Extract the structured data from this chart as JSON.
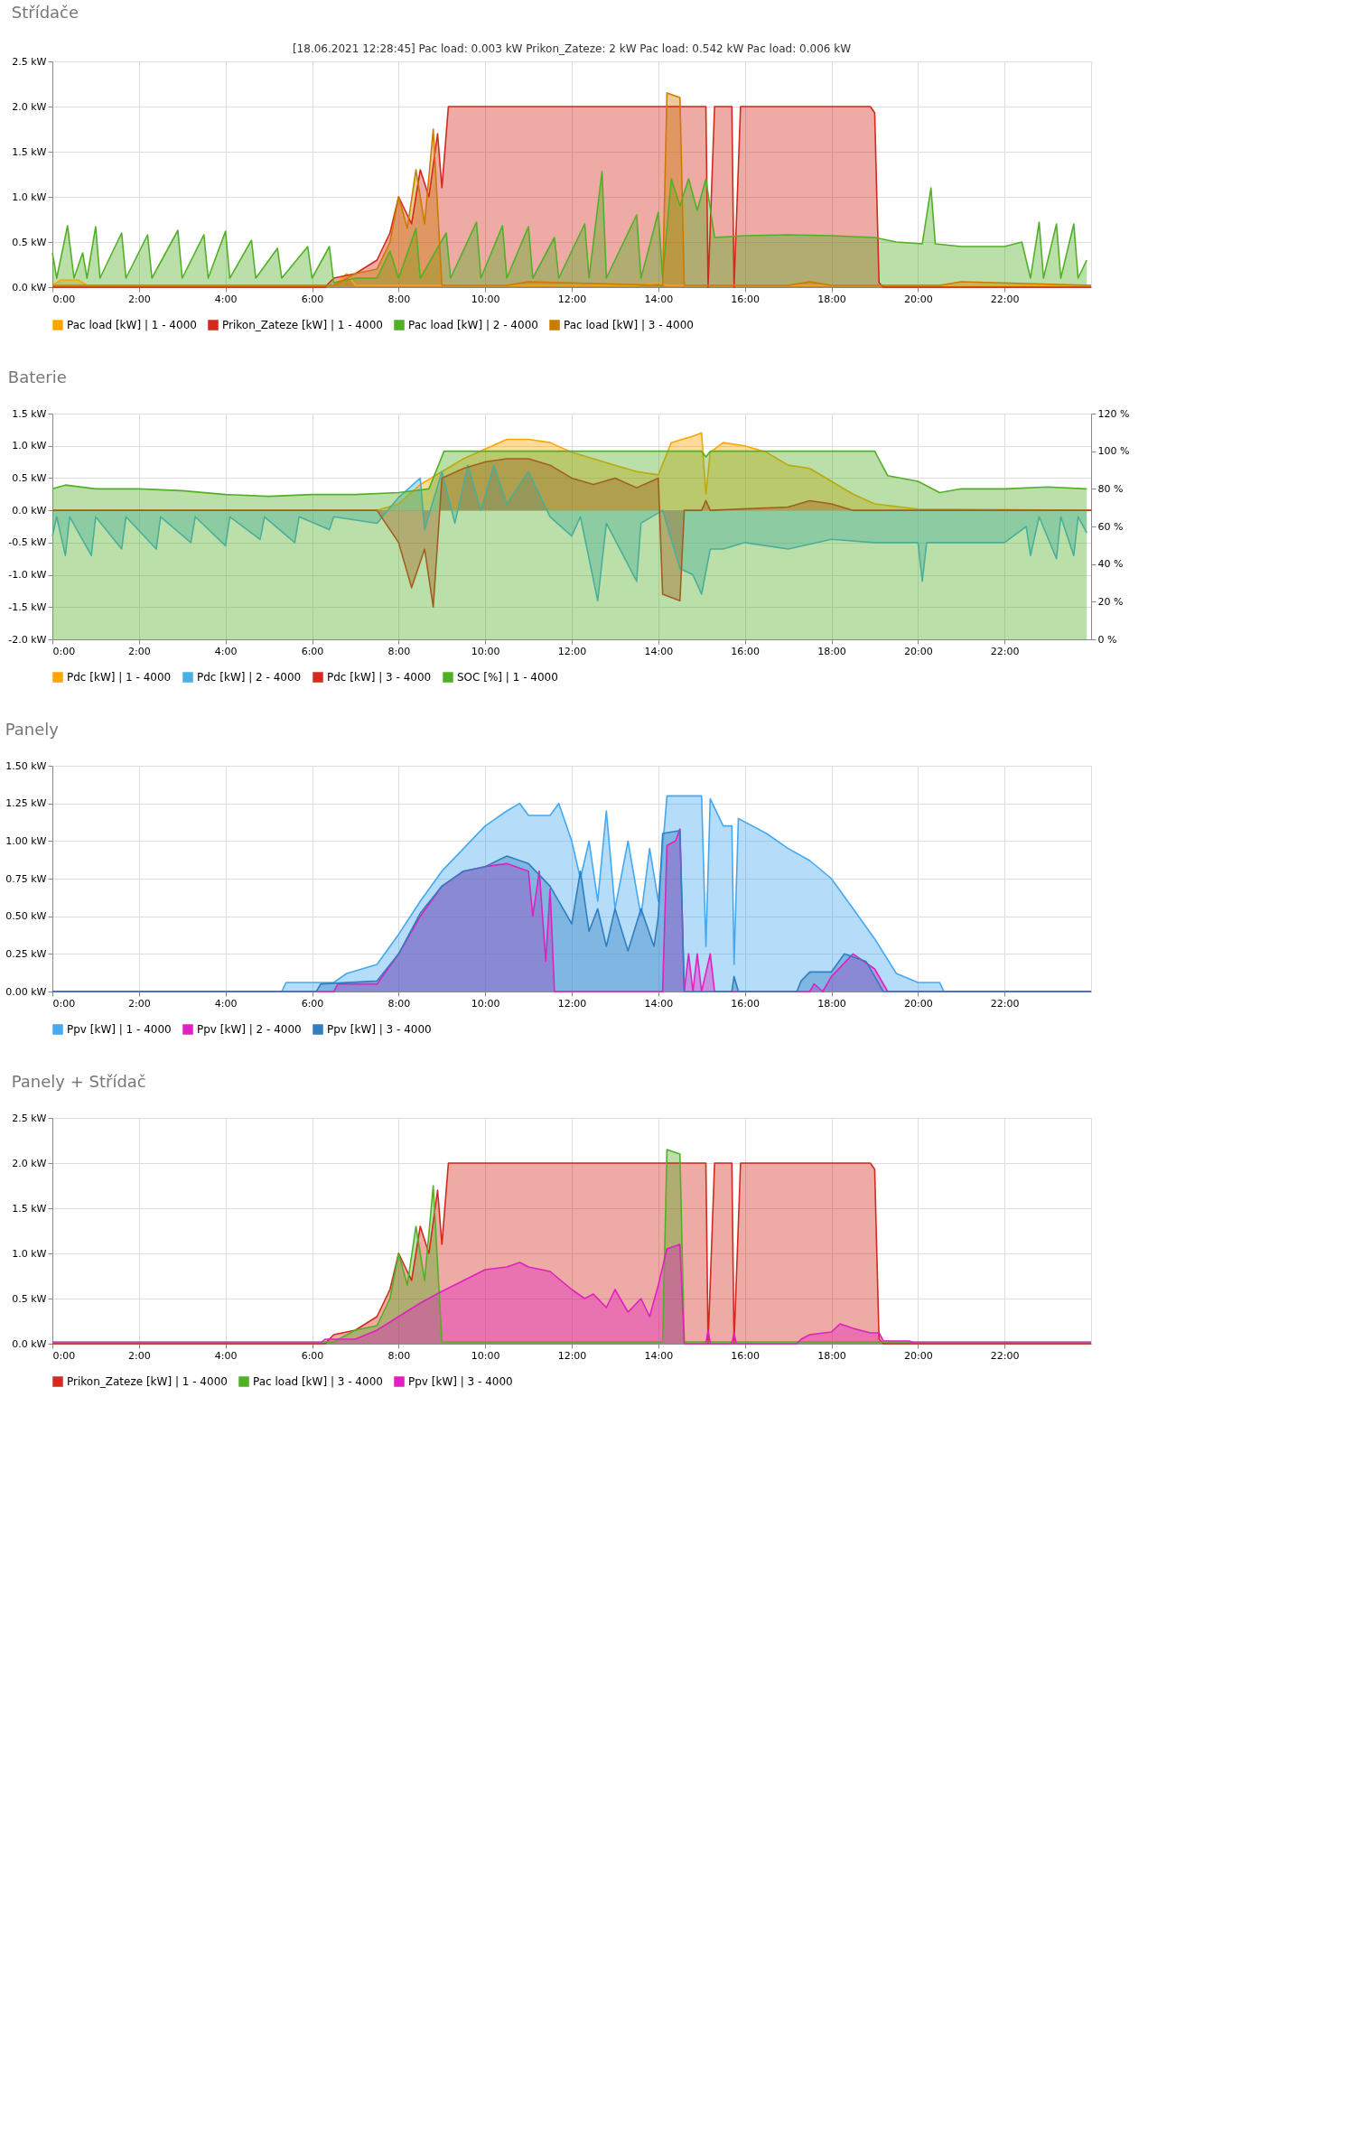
{
  "chart_data": [
    {
      "type": "area",
      "title": "Střídače",
      "annotations": [
        "[18.06.2021 12:28:45]   Pac load: 0.003 kW   Prikon_Zateze: 2 kW   Pac load: 0.542 kW   Pac load: 0.006 kW"
      ],
      "grid": true,
      "legend": "bottom",
      "xlim": [
        0,
        24
      ],
      "xticks": [
        {
          "value": 0,
          "label": "0:00"
        },
        {
          "value": 2,
          "label": "2:00"
        },
        {
          "value": 4,
          "label": "4:00"
        },
        {
          "value": 6,
          "label": "6:00"
        },
        {
          "value": 8,
          "label": "8:00"
        },
        {
          "value": 10,
          "label": "10:00"
        },
        {
          "value": 12,
          "label": "12:00"
        },
        {
          "value": 14,
          "label": "14:00"
        },
        {
          "value": 16,
          "label": "16:00"
        },
        {
          "value": 18,
          "label": "18:00"
        },
        {
          "value": 20,
          "label": "20:00"
        },
        {
          "value": 22,
          "label": "22:00"
        }
      ],
      "ylim": [
        0,
        2.5
      ],
      "yticks": [
        {
          "value": 0,
          "label": "0.0 kW"
        },
        {
          "value": 0.5,
          "label": "0.5 kW"
        },
        {
          "value": 1,
          "label": "1.0 kW"
        },
        {
          "value": 1.5,
          "label": "1.5 kW"
        },
        {
          "value": 2,
          "label": "2.0 kW"
        },
        {
          "value": 2.5,
          "label": "2.5 kW"
        }
      ],
      "series": [
        {
          "name": "Pac load [kW] | 1 - 4000",
          "color": "#ffa500",
          "x": [
            0,
            0.2,
            0.6,
            0.8,
            6.5,
            6.8,
            7.0,
            13.5,
            14.0,
            14.2,
            24
          ],
          "values": [
            0.02,
            0.08,
            0.08,
            0.02,
            0.02,
            0.15,
            0.02,
            0.02,
            0.05,
            0.02,
            0.02
          ]
        },
        {
          "name": "Prikon_Zateze [kW] | 1 - 4000",
          "color": "#d42a1e",
          "x": [
            0,
            6.3,
            6.5,
            7.0,
            7.5,
            7.8,
            8.0,
            8.3,
            8.5,
            8.7,
            8.9,
            9.0,
            9.15,
            15.1,
            15.15,
            15.3,
            15.7,
            15.75,
            15.9,
            18.9,
            19.0,
            19.1,
            19.2,
            24
          ],
          "values": [
            0,
            0,
            0.1,
            0.15,
            0.3,
            0.6,
            1.0,
            0.7,
            1.3,
            1.0,
            1.7,
            1.1,
            2.0,
            2.0,
            0,
            2.0,
            2.0,
            0,
            2.0,
            2.0,
            1.93,
            0.05,
            0,
            0
          ]
        },
        {
          "name": "Pac load [kW] | 2 - 4000",
          "color": "#52b026",
          "x": [
            0,
            0.1,
            0.35,
            0.5,
            0.7,
            0.8,
            1.0,
            1.1,
            1.6,
            1.7,
            2.2,
            2.3,
            2.9,
            3.0,
            3.5,
            3.6,
            4.0,
            4.1,
            4.6,
            4.7,
            5.2,
            5.3,
            5.9,
            6.0,
            6.4,
            6.5,
            7.0,
            7.5,
            7.8,
            8.0,
            8.4,
            8.5,
            9.1,
            9.2,
            9.8,
            9.9,
            10.4,
            10.5,
            11.0,
            11.1,
            11.6,
            11.7,
            12.3,
            12.4,
            12.7,
            12.8,
            13.5,
            13.6,
            14.0,
            14.1,
            14.3,
            14.5,
            14.7,
            14.9,
            15.1,
            15.3,
            16.0,
            17.0,
            18.0,
            19.0,
            19.5,
            20.1,
            20.3,
            20.4,
            21.0,
            22.0,
            22.4,
            22.6,
            22.8,
            22.9,
            23.2,
            23.3,
            23.6,
            23.7,
            23.9
          ],
          "values": [
            0.38,
            0.1,
            0.68,
            0.1,
            0.38,
            0.1,
            0.67,
            0.1,
            0.6,
            0.1,
            0.58,
            0.1,
            0.63,
            0.1,
            0.58,
            0.1,
            0.62,
            0.1,
            0.52,
            0.1,
            0.43,
            0.1,
            0.45,
            0.1,
            0.45,
            0.05,
            0.1,
            0.1,
            0.4,
            0.1,
            0.65,
            0.1,
            0.6,
            0.1,
            0.72,
            0.1,
            0.68,
            0.1,
            0.67,
            0.1,
            0.55,
            0.1,
            0.7,
            0.1,
            1.28,
            0.1,
            0.8,
            0.1,
            0.83,
            0.1,
            1.2,
            0.9,
            1.2,
            0.85,
            1.2,
            0.55,
            0.57,
            0.58,
            0.57,
            0.55,
            0.5,
            0.48,
            1.1,
            0.48,
            0.45,
            0.45,
            0.5,
            0.1,
            0.72,
            0.1,
            0.7,
            0.1,
            0.7,
            0.1,
            0.3
          ]
        },
        {
          "name": "Pac load [kW] | 3 - 4000",
          "color": "#cc7a00",
          "x": [
            0,
            6.5,
            7.0,
            7.5,
            7.8,
            8.0,
            8.2,
            8.4,
            8.6,
            8.8,
            9.0,
            10.5,
            11.0,
            14.1,
            14.2,
            14.5,
            14.6,
            17.0,
            17.5,
            18.0,
            20.5,
            21.0,
            24
          ],
          "values": [
            0.02,
            0.02,
            0.15,
            0.2,
            0.5,
            1.0,
            0.65,
            1.3,
            0.7,
            1.75,
            0.02,
            0.02,
            0.06,
            0.02,
            2.15,
            2.1,
            0.02,
            0.02,
            0.06,
            0.02,
            0.02,
            0.06,
            0.02
          ]
        }
      ]
    },
    {
      "type": "area",
      "title": "Baterie",
      "grid": true,
      "legend": "bottom",
      "xlim": [
        0,
        24
      ],
      "xticks": [
        {
          "value": 0,
          "label": "0:00"
        },
        {
          "value": 2,
          "label": "2:00"
        },
        {
          "value": 4,
          "label": "4:00"
        },
        {
          "value": 6,
          "label": "6:00"
        },
        {
          "value": 8,
          "label": "8:00"
        },
        {
          "value": 10,
          "label": "10:00"
        },
        {
          "value": 12,
          "label": "12:00"
        },
        {
          "value": 14,
          "label": "14:00"
        },
        {
          "value": 16,
          "label": "16:00"
        },
        {
          "value": 18,
          "label": "18:00"
        },
        {
          "value": 20,
          "label": "20:00"
        },
        {
          "value": 22,
          "label": "22:00"
        }
      ],
      "ylim": [
        -2,
        1.5
      ],
      "yticks": [
        {
          "value": -2,
          "label": "-2.0 kW"
        },
        {
          "value": -1.5,
          "label": "-1.5 kW"
        },
        {
          "value": -1,
          "label": "-1.0 kW"
        },
        {
          "value": -0.5,
          "label": "-0.5 kW"
        },
        {
          "value": 0,
          "label": "0.0 kW"
        },
        {
          "value": 0.5,
          "label": "0.5 kW"
        },
        {
          "value": 1,
          "label": "1.0 kW"
        },
        {
          "value": 1.5,
          "label": "1.5 kW"
        }
      ],
      "y2lim": [
        0,
        120
      ],
      "y2ticks": [
        {
          "value": 0,
          "label": "0 %"
        },
        {
          "value": 20,
          "label": "20 %"
        },
        {
          "value": 40,
          "label": "40 %"
        },
        {
          "value": 60,
          "label": "60 %"
        },
        {
          "value": 80,
          "label": "80 %"
        },
        {
          "value": 100,
          "label": "100 %"
        },
        {
          "value": 120,
          "label": "120 %"
        }
      ],
      "series": [
        {
          "name": "Pdc [kW] | 1 - 4000",
          "color": "#ffa500",
          "x": [
            0,
            7.5,
            8.0,
            8.5,
            9.0,
            9.5,
            10.0,
            10.5,
            11.0,
            11.5,
            12.0,
            12.5,
            13.0,
            13.5,
            14.0,
            14.3,
            14.8,
            15.0,
            15.1,
            15.2,
            15.5,
            16.0,
            16.5,
            17.0,
            17.5,
            18.0,
            18.5,
            19.0,
            20.0,
            24
          ],
          "values": [
            0,
            0,
            0.1,
            0.4,
            0.6,
            0.8,
            0.95,
            1.1,
            1.1,
            1.05,
            0.9,
            0.8,
            0.7,
            0.6,
            0.55,
            1.05,
            1.15,
            1.2,
            0.25,
            0.9,
            1.05,
            1.0,
            0.9,
            0.7,
            0.65,
            0.45,
            0.25,
            0.1,
            0.02,
            0
          ]
        },
        {
          "name": "Pdc [kW] | 2 - 4000",
          "color": "#45b0e5",
          "x": [
            0,
            0.1,
            0.3,
            0.4,
            0.9,
            1.0,
            1.6,
            1.7,
            2.4,
            2.5,
            3.2,
            3.3,
            4.0,
            4.1,
            4.8,
            4.9,
            5.6,
            5.7,
            6.4,
            6.5,
            7.5,
            8.0,
            8.5,
            8.6,
            9.0,
            9.3,
            9.6,
            9.9,
            10.2,
            10.5,
            11.0,
            11.5,
            12.0,
            12.2,
            12.6,
            12.8,
            13.5,
            13.6,
            14.1,
            14.5,
            14.8,
            15.0,
            15.2,
            15.5,
            16.0,
            17.0,
            18.0,
            19.0,
            20.0,
            20.1,
            20.2,
            21.0,
            22.0,
            22.5,
            22.6,
            22.8,
            23.2,
            23.3,
            23.6,
            23.7,
            23.9
          ],
          "values": [
            -0.4,
            -0.1,
            -0.7,
            -0.1,
            -0.7,
            -0.1,
            -0.6,
            -0.1,
            -0.6,
            -0.1,
            -0.5,
            -0.1,
            -0.55,
            -0.1,
            -0.45,
            -0.1,
            -0.5,
            -0.1,
            -0.3,
            -0.1,
            -0.2,
            0.2,
            0.5,
            -0.3,
            0.6,
            -0.2,
            0.7,
            0,
            0.7,
            0.1,
            0.6,
            -0.1,
            -0.4,
            -0.1,
            -1.4,
            -0.2,
            -1.1,
            -0.2,
            0,
            -0.9,
            -1.0,
            -1.3,
            -0.6,
            -0.6,
            -0.5,
            -0.6,
            -0.45,
            -0.5,
            -0.5,
            -1.1,
            -0.5,
            -0.5,
            -0.5,
            -0.25,
            -0.7,
            -0.1,
            -0.75,
            -0.1,
            -0.7,
            -0.1,
            -0.35
          ]
        },
        {
          "name": "Pdc [kW] | 3 - 4000",
          "color": "#d42a1e",
          "x": [
            0,
            7.5,
            8.0,
            8.3,
            8.6,
            8.8,
            9.0,
            9.5,
            10.0,
            10.5,
            11.0,
            11.5,
            12.0,
            12.5,
            13.0,
            13.5,
            14.0,
            14.1,
            14.5,
            14.6,
            15.0,
            15.1,
            15.2,
            17.0,
            17.5,
            18.0,
            18.5,
            24
          ],
          "values": [
            0,
            0,
            -0.5,
            -1.2,
            -0.6,
            -1.5,
            0.5,
            0.65,
            0.75,
            0.8,
            0.8,
            0.7,
            0.5,
            0.4,
            0.5,
            0.35,
            0.5,
            -1.3,
            -1.4,
            0,
            0,
            0.15,
            0,
            0.05,
            0.15,
            0.1,
            0,
            0
          ]
        },
        {
          "name": "SOC [%] | 1 - 4000",
          "color": "#52b026",
          "axis": "y2",
          "x": [
            0,
            0.3,
            1,
            2,
            3,
            4,
            5,
            6,
            7,
            8,
            8.7,
            9.05,
            15,
            15.1,
            15.2,
            19,
            19.3,
            20,
            20.5,
            21,
            22,
            23,
            23.9
          ],
          "values": [
            80,
            82,
            80,
            80,
            79,
            77,
            76,
            77,
            77,
            78,
            80,
            100,
            100,
            97,
            100,
            100,
            87,
            84,
            78,
            80,
            80,
            81,
            80
          ]
        }
      ]
    },
    {
      "type": "area",
      "title": "Panely",
      "grid": true,
      "legend": "bottom",
      "xlim": [
        0,
        24
      ],
      "xticks": [
        {
          "value": 0,
          "label": "0:00"
        },
        {
          "value": 2,
          "label": "2:00"
        },
        {
          "value": 4,
          "label": "4:00"
        },
        {
          "value": 6,
          "label": "6:00"
        },
        {
          "value": 8,
          "label": "8:00"
        },
        {
          "value": 10,
          "label": "10:00"
        },
        {
          "value": 12,
          "label": "12:00"
        },
        {
          "value": 14,
          "label": "14:00"
        },
        {
          "value": 16,
          "label": "16:00"
        },
        {
          "value": 18,
          "label": "18:00"
        },
        {
          "value": 20,
          "label": "20:00"
        },
        {
          "value": 22,
          "label": "22:00"
        }
      ],
      "ylim": [
        0,
        1.5
      ],
      "yticks": [
        {
          "value": 0,
          "label": "0.00 kW"
        },
        {
          "value": 0.25,
          "label": "0.25 kW"
        },
        {
          "value": 0.5,
          "label": "0.50 kW"
        },
        {
          "value": 0.75,
          "label": "0.75 kW"
        },
        {
          "value": 1,
          "label": "1.00 kW"
        },
        {
          "value": 1.25,
          "label": "1.25 kW"
        },
        {
          "value": 1.5,
          "label": "1.50 kW"
        }
      ],
      "series": [
        {
          "name": "Ppv [kW] | 1 - 4000",
          "color": "#45a8f0",
          "x": [
            0,
            5.3,
            5.4,
            6.5,
            6.8,
            7.5,
            8.0,
            8.5,
            9.0,
            9.5,
            10.0,
            10.5,
            10.8,
            11.0,
            11.5,
            11.7,
            12.0,
            12.2,
            12.4,
            12.6,
            12.8,
            13.0,
            13.3,
            13.6,
            13.8,
            14.0,
            14.2,
            14.5,
            14.7,
            15.0,
            15.1,
            15.2,
            15.5,
            15.7,
            15.75,
            15.85,
            16.5,
            17.0,
            17.5,
            18.0,
            18.5,
            19.0,
            19.5,
            20.0,
            20.5,
            20.6,
            24
          ],
          "values": [
            0,
            0,
            0.06,
            0.06,
            0.12,
            0.18,
            0.38,
            0.6,
            0.8,
            0.95,
            1.1,
            1.2,
            1.25,
            1.17,
            1.17,
            1.25,
            1.0,
            0.75,
            1.0,
            0.6,
            1.2,
            0.55,
            1.0,
            0.5,
            0.95,
            0.6,
            1.3,
            1.3,
            1.3,
            1.3,
            0.3,
            1.28,
            1.1,
            1.1,
            0.18,
            1.15,
            1.05,
            0.95,
            0.87,
            0.75,
            0.55,
            0.35,
            0.12,
            0.06,
            0.06,
            0,
            0
          ]
        },
        {
          "name": "Ppv [kW] | 2 - 4000",
          "color": "#e020c0",
          "x": [
            0,
            6.5,
            6.6,
            7.5,
            8.0,
            8.5,
            9.0,
            9.5,
            10.0,
            10.5,
            11.0,
            11.1,
            11.25,
            11.4,
            11.5,
            11.6,
            14.1,
            14.2,
            14.4,
            14.5,
            14.6,
            14.7,
            14.8,
            14.9,
            15.0,
            15.2,
            15.3,
            17.5,
            17.6,
            17.8,
            18.0,
            18.5,
            19.0,
            19.3,
            24
          ],
          "values": [
            0,
            0,
            0.05,
            0.05,
            0.25,
            0.5,
            0.7,
            0.8,
            0.83,
            0.85,
            0.8,
            0.5,
            0.8,
            0.2,
            0.68,
            0,
            0,
            0.97,
            1.0,
            1.08,
            0,
            0.25,
            0,
            0.25,
            0,
            0.25,
            0,
            0,
            0.05,
            0,
            0.1,
            0.25,
            0.15,
            0,
            0
          ]
        },
        {
          "name": "Ppv [kW] | 3 - 4000",
          "color": "#2f7fc0",
          "x": [
            0,
            6.1,
            6.2,
            7.5,
            8.0,
            8.5,
            9.0,
            9.5,
            10.0,
            10.5,
            11.0,
            11.5,
            12.0,
            12.2,
            12.4,
            12.6,
            12.8,
            13.0,
            13.3,
            13.6,
            13.9,
            14.0,
            14.1,
            14.5,
            14.6,
            15.7,
            15.75,
            15.85,
            17.2,
            17.3,
            17.5,
            18.0,
            18.3,
            18.8,
            19.2,
            24
          ],
          "values": [
            0,
            0,
            0.05,
            0.07,
            0.25,
            0.52,
            0.7,
            0.8,
            0.83,
            0.9,
            0.85,
            0.7,
            0.45,
            0.8,
            0.4,
            0.55,
            0.3,
            0.55,
            0.27,
            0.55,
            0.3,
            0.5,
            1.05,
            1.07,
            0,
            0,
            0.1,
            0,
            0,
            0.07,
            0.13,
            0.13,
            0.25,
            0.2,
            0,
            0
          ]
        }
      ]
    },
    {
      "type": "area",
      "title": "Panely + Střídač",
      "grid": true,
      "legend": "bottom",
      "xlim": [
        0,
        24
      ],
      "xticks": [
        {
          "value": 0,
          "label": "0:00"
        },
        {
          "value": 2,
          "label": "2:00"
        },
        {
          "value": 4,
          "label": "4:00"
        },
        {
          "value": 6,
          "label": "6:00"
        },
        {
          "value": 8,
          "label": "8:00"
        },
        {
          "value": 10,
          "label": "10:00"
        },
        {
          "value": 12,
          "label": "12:00"
        },
        {
          "value": 14,
          "label": "14:00"
        },
        {
          "value": 16,
          "label": "16:00"
        },
        {
          "value": 18,
          "label": "18:00"
        },
        {
          "value": 20,
          "label": "20:00"
        },
        {
          "value": 22,
          "label": "22:00"
        }
      ],
      "ylim": [
        0,
        2.5
      ],
      "yticks": [
        {
          "value": 0,
          "label": "0.0 kW"
        },
        {
          "value": 0.5,
          "label": "0.5 kW"
        },
        {
          "value": 1,
          "label": "1.0 kW"
        },
        {
          "value": 1.5,
          "label": "1.5 kW"
        },
        {
          "value": 2,
          "label": "2.0 kW"
        },
        {
          "value": 2.5,
          "label": "2.5 kW"
        }
      ],
      "series": [
        {
          "name": "Prikon_Zateze [kW] | 1 - 4000",
          "color": "#d42a1e",
          "x": [
            0,
            6.3,
            6.5,
            7.0,
            7.5,
            7.8,
            8.0,
            8.3,
            8.5,
            8.7,
            8.9,
            9.0,
            9.15,
            15.1,
            15.15,
            15.3,
            15.7,
            15.75,
            15.9,
            18.9,
            19.0,
            19.1,
            19.2,
            24
          ],
          "values": [
            0,
            0,
            0.1,
            0.15,
            0.3,
            0.6,
            1.0,
            0.7,
            1.3,
            1.0,
            1.7,
            1.1,
            2.0,
            2.0,
            0,
            2.0,
            2.0,
            0,
            2.0,
            2.0,
            1.93,
            0.05,
            0,
            0
          ]
        },
        {
          "name": "Pac load [kW] | 3 - 4000",
          "color": "#52b026",
          "x": [
            0,
            6.5,
            7.0,
            7.5,
            7.8,
            8.0,
            8.2,
            8.4,
            8.6,
            8.8,
            9.0,
            14.1,
            14.2,
            14.5,
            14.6,
            24
          ],
          "values": [
            0.02,
            0.02,
            0.15,
            0.2,
            0.5,
            1.0,
            0.65,
            1.3,
            0.7,
            1.75,
            0.02,
            0.02,
            2.15,
            2.1,
            0.02,
            0.02
          ]
        },
        {
          "name": "Ppv [kW] | 3 - 4000",
          "color": "#e020c0",
          "x": [
            0,
            6.2,
            6.3,
            7.0,
            7.5,
            8.0,
            8.5,
            9.0,
            9.5,
            10.0,
            10.5,
            10.8,
            11.0,
            11.5,
            12.0,
            12.3,
            12.5,
            12.8,
            13.0,
            13.3,
            13.6,
            13.8,
            14.0,
            14.2,
            14.5,
            14.6,
            15.1,
            15.15,
            15.2,
            15.7,
            15.75,
            15.8,
            17.2,
            17.3,
            17.5,
            18.0,
            18.2,
            18.5,
            18.9,
            19.1,
            19.2,
            19.8,
            19.9,
            24
          ],
          "values": [
            0.01,
            0.01,
            0.05,
            0.05,
            0.15,
            0.3,
            0.45,
            0.58,
            0.7,
            0.82,
            0.85,
            0.9,
            0.85,
            0.8,
            0.6,
            0.5,
            0.55,
            0.4,
            0.6,
            0.35,
            0.5,
            0.3,
            0.65,
            1.05,
            1.1,
            0,
            0,
            0.15,
            0,
            0,
            0.12,
            0,
            0,
            0.05,
            0.1,
            0.13,
            0.22,
            0.17,
            0.12,
            0.12,
            0.03,
            0.03,
            0.01,
            0.01
          ]
        }
      ]
    }
  ]
}
